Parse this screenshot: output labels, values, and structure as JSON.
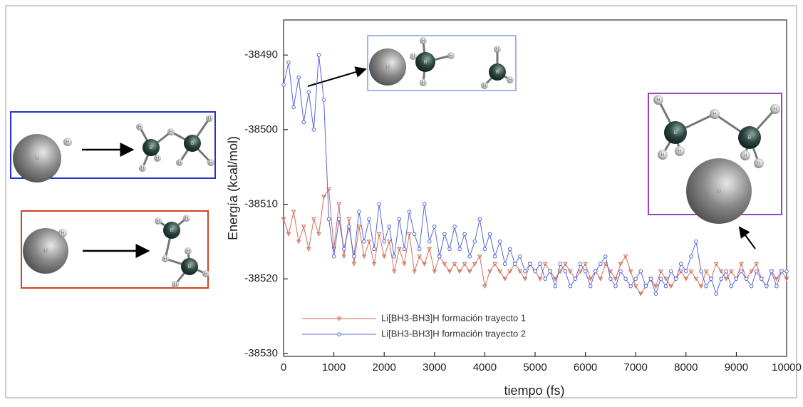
{
  "chart_data": {
    "type": "line",
    "x_label": "tiempo (fs)",
    "y_label": "Energía (kcal/mol)",
    "xlim": [
      0,
      10000
    ],
    "ylim": [
      -38530.4,
      -38485.3
    ],
    "xticks": [
      0,
      1000,
      2000,
      3000,
      4000,
      5000,
      6000,
      7000,
      8000,
      9000,
      10000
    ],
    "yticks": [
      -38530,
      -38520,
      -38510,
      -38500,
      -38490
    ],
    "grid": false,
    "legend": "lower left",
    "x": [
      0,
      100,
      200,
      300,
      400,
      500,
      600,
      700,
      800,
      900,
      1000,
      1100,
      1200,
      1300,
      1400,
      1500,
      1600,
      1700,
      1800,
      1900,
      2000,
      2100,
      2200,
      2300,
      2400,
      2500,
      2600,
      2700,
      2800,
      2900,
      3000,
      3100,
      3200,
      3300,
      3400,
      3500,
      3600,
      3700,
      3800,
      3900,
      4000,
      4100,
      4200,
      4300,
      4400,
      4500,
      4600,
      4700,
      4800,
      4900,
      5000,
      5100,
      5200,
      5300,
      5400,
      5500,
      5600,
      5700,
      5800,
      5900,
      6000,
      6100,
      6200,
      6300,
      6400,
      6500,
      6600,
      6700,
      6800,
      6900,
      7000,
      7100,
      7200,
      7300,
      7400,
      7500,
      7600,
      7700,
      7800,
      7900,
      8000,
      8100,
      8200,
      8300,
      8400,
      8500,
      8600,
      8700,
      8800,
      8900,
      9000,
      9100,
      9200,
      9300,
      9400,
      9500,
      9600,
      9700,
      9800,
      9900,
      10000
    ],
    "series": [
      {
        "name": "Li[BH3-BH3]H formación trayecto 1",
        "color": "#d0705a",
        "marker": "triangle",
        "values": [
          -38512,
          -38514,
          -38511,
          -38515,
          -38513,
          -38516,
          -38512,
          -38514,
          -38509,
          -38508,
          -38516,
          -38510,
          -38517,
          -38512,
          -38518,
          -38513,
          -38517,
          -38515,
          -38518,
          -38514,
          -38517,
          -38515,
          -38519,
          -38516,
          -38518,
          -38514,
          -38519,
          -38517,
          -38518,
          -38516,
          -38519,
          -38517,
          -38518,
          -38519,
          -38518,
          -38519,
          -38518,
          -38519,
          -38518,
          -38517,
          -38521,
          -38519,
          -38518,
          -38519,
          -38520,
          -38519,
          -38518,
          -38519,
          -38520,
          -38518,
          -38519,
          -38520,
          -38518,
          -38519,
          -38520,
          -38519,
          -38518,
          -38519,
          -38520,
          -38519,
          -38518,
          -38520,
          -38519,
          -38520,
          -38518,
          -38519,
          -38520,
          -38518,
          -38517,
          -38519,
          -38521,
          -38522,
          -38521,
          -38520,
          -38521,
          -38519,
          -38520,
          -38521,
          -38520,
          -38519,
          -38520,
          -38519,
          -38520,
          -38521,
          -38519,
          -38520,
          -38518,
          -38519,
          -38520,
          -38519,
          -38520,
          -38518,
          -38520,
          -38519,
          -38518,
          -38520,
          -38521,
          -38519,
          -38520,
          -38519,
          -38520
        ]
      },
      {
        "name": "Li[BH3-BH3]H formación trayecto 2",
        "color": "#5566dd",
        "marker": "circle",
        "values": [
          -38494,
          -38491,
          -38497,
          -38493,
          -38499,
          -38495,
          -38500,
          -38490,
          -38496,
          -38512,
          -38517,
          -38512,
          -38516,
          -38513,
          -38517,
          -38511,
          -38515,
          -38512,
          -38516,
          -38510,
          -38515,
          -38513,
          -38517,
          -38512,
          -38516,
          -38511,
          -38514,
          -38516,
          -38510,
          -38515,
          -38513,
          -38517,
          -38514,
          -38516,
          -38513,
          -38516,
          -38514,
          -38517,
          -38515,
          -38512,
          -38516,
          -38514,
          -38517,
          -38515,
          -38518,
          -38516,
          -38518,
          -38517,
          -38519,
          -38518,
          -38519,
          -38518,
          -38520,
          -38519,
          -38521,
          -38518,
          -38519,
          -38521,
          -38520,
          -38518,
          -38519,
          -38521,
          -38519,
          -38518,
          -38517,
          -38520,
          -38521,
          -38519,
          -38520,
          -38521,
          -38520,
          -38519,
          -38521,
          -38520,
          -38522,
          -38520,
          -38521,
          -38519,
          -38520,
          -38518,
          -38519,
          -38517,
          -38515,
          -38519,
          -38521,
          -38520,
          -38522,
          -38520,
          -38519,
          -38521,
          -38520,
          -38519,
          -38520,
          -38521,
          -38519,
          -38520,
          -38521,
          -38519,
          -38521,
          -38519,
          -38519
        ]
      }
    ],
    "atoms": {
      "lithium": "Li",
      "hydrogen": "H",
      "boron": "B"
    }
  }
}
